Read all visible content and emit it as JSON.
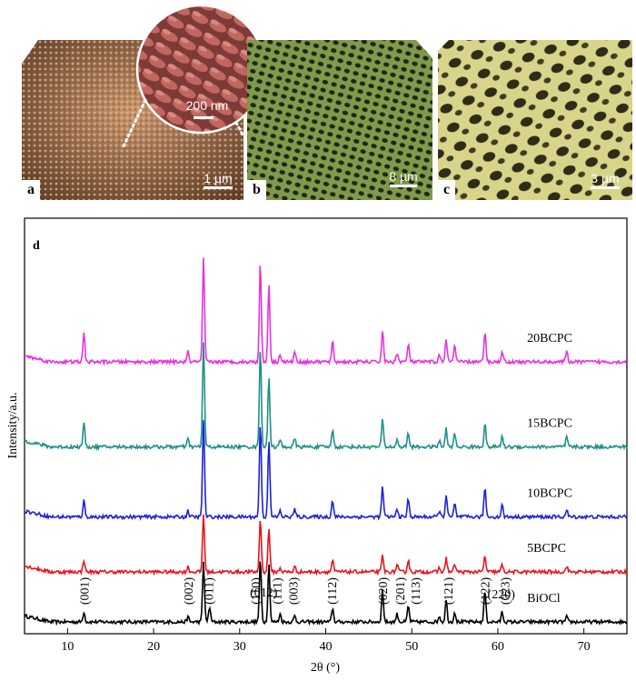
{
  "images": {
    "a": {
      "label": "a",
      "scale": "1 µm",
      "inset_scale": "200 nm",
      "color": "#c69a72"
    },
    "b": {
      "label": "b",
      "scale": "8 µm",
      "color": "#7e9a4a"
    },
    "c": {
      "label": "c",
      "scale": "3 µm",
      "color": "#d8d48a"
    }
  },
  "chart_data": {
    "type": "line",
    "panel_label": "d",
    "xlabel": "2θ (°)",
    "ylabel": "Intensity/a.u.",
    "xlim": [
      5,
      75
    ],
    "xticks": [
      10,
      20,
      30,
      40,
      50,
      60,
      70
    ],
    "grid": false,
    "peaks_2theta": [
      11.9,
      24.0,
      25.8,
      26.5,
      32.4,
      33.4,
      34.7,
      36.4,
      40.8,
      46.6,
      48.3,
      49.6,
      53.2,
      54.0,
      55.0,
      58.5,
      60.5,
      68.0
    ],
    "series": [
      {
        "name": "BiOCl",
        "color": "#000000",
        "baseline": 0.0,
        "heights": [
          0.1,
          0.05,
          0.6,
          0.15,
          0.62,
          0.58,
          0.08,
          0.06,
          0.14,
          0.32,
          0.08,
          0.16,
          0.06,
          0.22,
          0.1,
          0.32,
          0.1,
          0.05
        ]
      },
      {
        "name": "5BCPC",
        "color": "#e8141c",
        "baseline": 0.5,
        "heights": [
          0.12,
          0.05,
          0.58,
          0.0,
          0.54,
          0.44,
          0.04,
          0.05,
          0.12,
          0.16,
          0.07,
          0.12,
          0.04,
          0.14,
          0.08,
          0.16,
          0.07,
          0.06
        ]
      },
      {
        "name": "10BCPC",
        "color": "#1d22d9",
        "baseline": 1.05,
        "heights": [
          0.16,
          0.06,
          0.98,
          0.0,
          0.95,
          0.78,
          0.06,
          0.08,
          0.17,
          0.3,
          0.08,
          0.18,
          0.06,
          0.22,
          0.13,
          0.3,
          0.12,
          0.07
        ]
      },
      {
        "name": "15BCPC",
        "color": "#1f8f8a",
        "baseline": 1.75,
        "heights": [
          0.24,
          0.08,
          1.05,
          0.0,
          1.0,
          0.7,
          0.07,
          0.08,
          0.18,
          0.28,
          0.07,
          0.14,
          0.06,
          0.18,
          0.13,
          0.24,
          0.11,
          0.1
        ]
      },
      {
        "name": "20BCPC",
        "color": "#e532e0",
        "baseline": 2.6,
        "heights": [
          0.28,
          0.1,
          1.03,
          0.0,
          1.0,
          0.78,
          0.08,
          0.1,
          0.2,
          0.32,
          0.09,
          0.18,
          0.07,
          0.24,
          0.17,
          0.3,
          0.12,
          0.11
        ]
      }
    ],
    "hkl_labels": [
      {
        "text": "(001)",
        "x": 11.9
      },
      {
        "text": "(002)",
        "x": 24.0
      },
      {
        "text": "(011)",
        "x": 26.4
      },
      {
        "text": "(110)",
        "x": 31.8
      },
      {
        "text": "(111)",
        "x": 34.3
      },
      {
        "text": "(003)",
        "x": 36.2
      },
      {
        "text": "(112)",
        "x": 40.7
      },
      {
        "text": "(020)",
        "x": 46.6
      },
      {
        "text": "(201)",
        "x": 48.6
      },
      {
        "text": "(113)",
        "x": 50.4
      },
      {
        "text": "(121)",
        "x": 54.2
      },
      {
        "text": "(122)",
        "x": 58.5
      },
      {
        "text": "(023)",
        "x": 60.8
      }
    ],
    "extra_labels": [
      {
        "text": "(012)",
        "x": 32.8
      },
      {
        "text": "(220)",
        "x": 60.4
      }
    ]
  }
}
